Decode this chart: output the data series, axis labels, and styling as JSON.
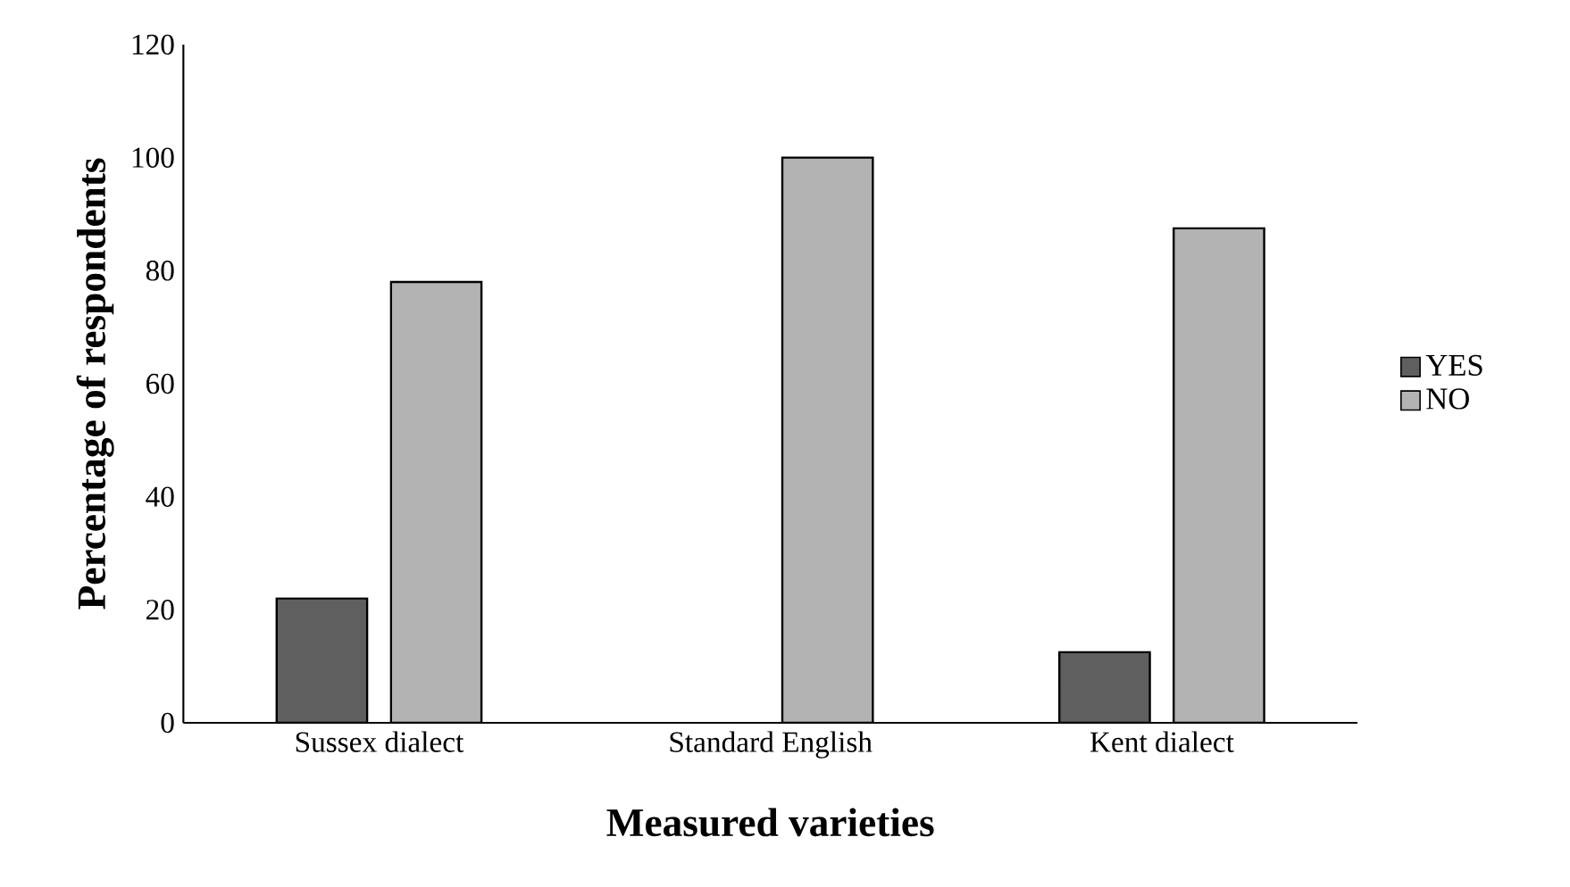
{
  "chart_data": {
    "type": "bar",
    "xlabel": "Measured varieties",
    "ylabel": "Percentage of respondents",
    "categories": [
      "Sussex dialect",
      "Standard English",
      "Kent dialect"
    ],
    "series": [
      {
        "name": "YES",
        "color": "#5f5f5f",
        "values": [
          22,
          0,
          12.5
        ]
      },
      {
        "name": "NO",
        "color": "#b3b3b3",
        "values": [
          78,
          100,
          87.5
        ]
      }
    ],
    "ylim": [
      0,
      120
    ],
    "yticks": [
      0,
      20,
      40,
      60,
      80,
      100,
      120
    ],
    "grid": false,
    "legend": "right"
  }
}
